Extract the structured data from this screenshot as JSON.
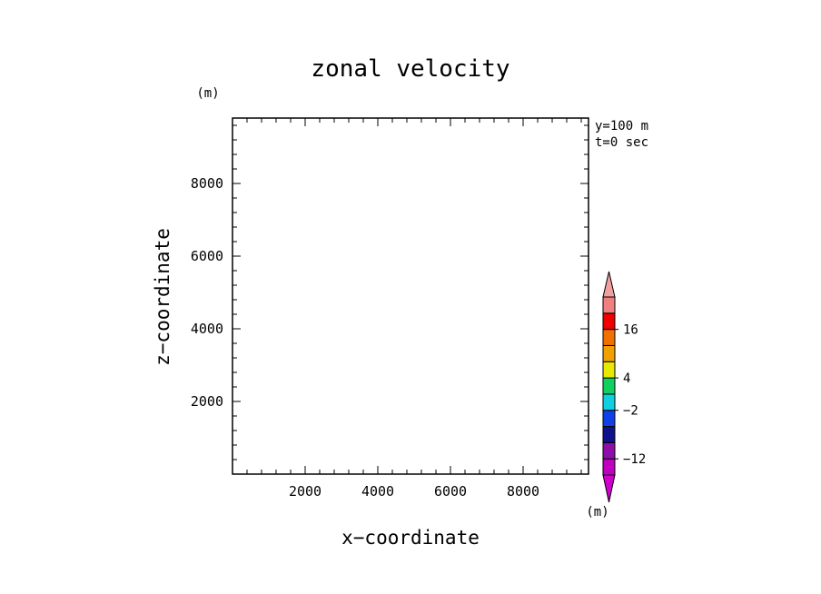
{
  "chart_data": {
    "type": "heatmap",
    "title": "zonal velocity",
    "xlabel": "x−coordinate",
    "ylabel": "z−coordinate",
    "x_unit": "(m)",
    "y_unit": "(m)",
    "xlim": [
      0,
      9800
    ],
    "ylim": [
      0,
      9800
    ],
    "x_major_ticks": [
      2000,
      4000,
      6000,
      8000
    ],
    "y_major_ticks": [
      2000,
      4000,
      6000,
      8000
    ],
    "x_tick_labels": [
      "2000",
      "4000",
      "6000",
      "8000"
    ],
    "y_tick_labels": [
      "2000",
      "4000",
      "6000",
      "8000"
    ],
    "minor_tick_step": 400,
    "grid": false,
    "field_values": [],
    "annotations": [
      "y=100 m",
      "t=0 sec"
    ],
    "colorbar": {
      "colors": [
        "#c000c0",
        "#8c10a8",
        "#10108c",
        "#1040e8",
        "#10d0e0",
        "#10d060",
        "#e8e800",
        "#f0a000",
        "#f07000",
        "#f00000",
        "#f08080"
      ],
      "extend_low_color": "#d000d0",
      "extend_high_color": "#f0a0a0",
      "tick_labels": [
        "16",
        "4",
        "−2",
        "−12"
      ],
      "tick_values": [
        16,
        4,
        -2,
        -12
      ]
    }
  }
}
